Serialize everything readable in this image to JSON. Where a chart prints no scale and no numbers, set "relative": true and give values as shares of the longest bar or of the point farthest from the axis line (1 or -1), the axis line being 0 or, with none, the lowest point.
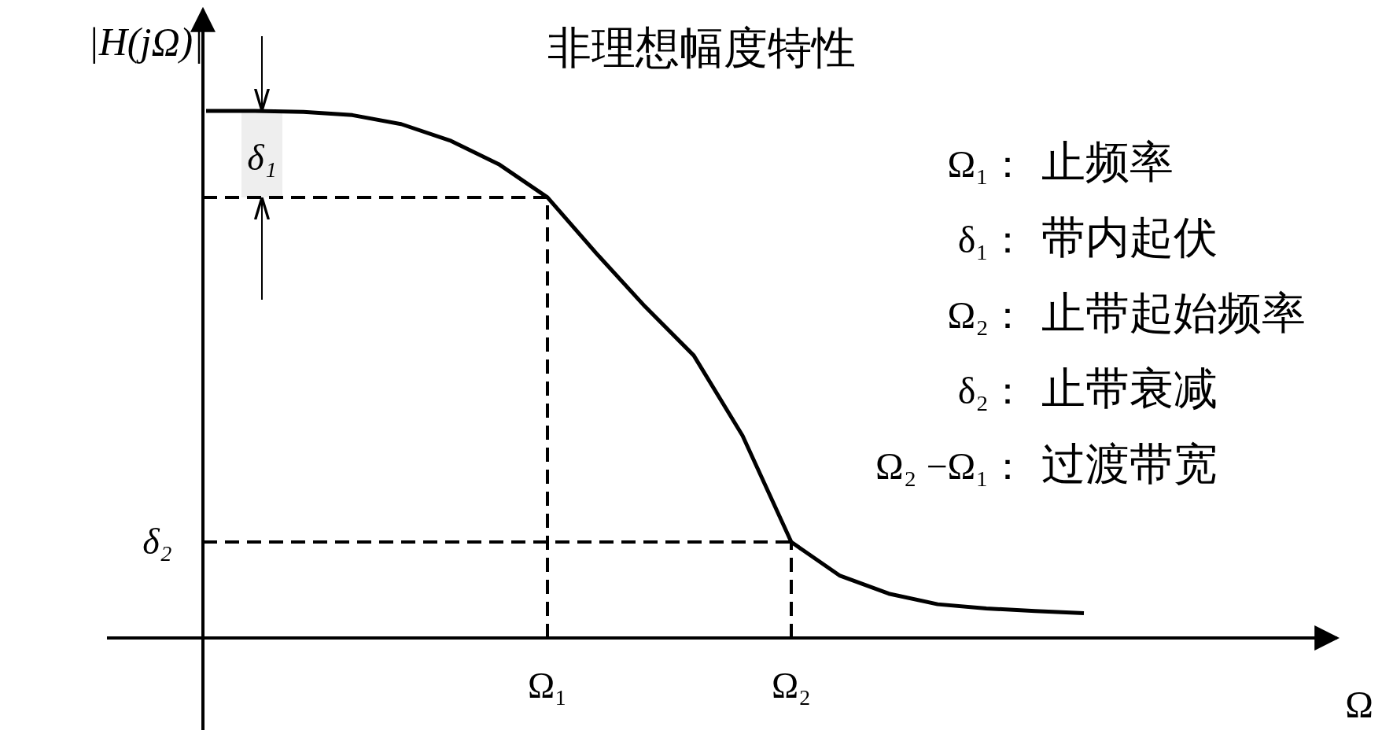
{
  "chart_data": {
    "type": "line",
    "relative": true,
    "title": "非理想幅度特性",
    "ylabel": "|H(jΩ)|",
    "categories": [
      null,
      null,
      null,
      null,
      null,
      null,
      null,
      null,
      null,
      null,
      null,
      null,
      null,
      null,
      null,
      null,
      null,
      null,
      null
    ],
    "series": [
      {
        "color": "#000000",
        "values": [
          1.0,
          1.0,
          0.998,
          0.992,
          0.975,
          0.944,
          0.899,
          0.836,
          0.73,
          0.629,
          0.536,
          0.384,
          0.182,
          0.118,
          0.084,
          0.064,
          0.056,
          0.051,
          0.047
        ]
      }
    ],
    "ref_lines": [
      {
        "axis": "y",
        "value": 0.836,
        "label": null,
        "line_style": "dashed"
      },
      {
        "axis": "y",
        "value": 0.182,
        "label": "δ₂",
        "line_style": "dashed"
      }
    ],
    "bands": [
      {
        "axis": "y",
        "from": 0.836,
        "to": 1.0,
        "label": "δ₁",
        "color": "#eeeeee"
      }
    ],
    "annotations": [
      {
        "text": "Ω₁",
        "y": 0.836
      },
      {
        "text": "Ω₂",
        "y": 0.182
      },
      {
        "text": "Ω"
      },
      "Ω₁： 止频率",
      "δ₁： 带内起伏",
      "Ω₂： 止带起始频率",
      "δ₂： 止带衰减",
      "Ω₂ −Ω₁： 过渡带宽"
    ],
    "grid": false,
    "marker": "none",
    "line_style": "solid"
  }
}
